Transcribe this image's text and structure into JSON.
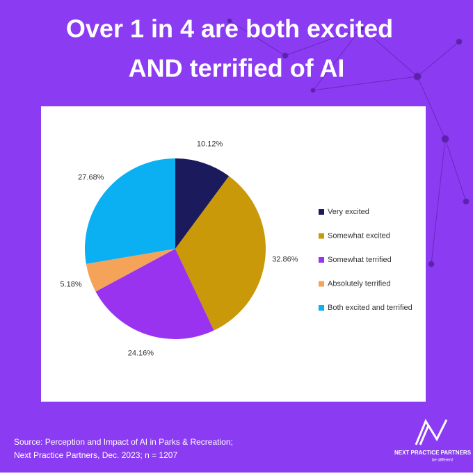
{
  "chart_data": {
    "type": "pie",
    "title": [
      "Over 1 in 4 are both excited",
      "AND terrified of AI"
    ],
    "categories": [
      "Very excited",
      "Somewhat excited",
      "Somewhat terrified",
      "Absolutely terrified",
      "Both excited and terrified"
    ],
    "values": [
      10.12,
      32.86,
      24.16,
      5.18,
      27.68
    ],
    "value_labels": [
      "10.12%",
      "32.86%",
      "24.16%",
      "5.18%",
      "27.68%"
    ],
    "colors": [
      "#1b1a5c",
      "#c9990a",
      "#9933f0",
      "#f6a35a",
      "#0ab0f2"
    ],
    "legend": "right"
  },
  "footer": {
    "source": [
      "Source: Perception and Impact of AI in Parks & Recreation;",
      "Next Practice Partners, Dec. 2023; n = 1207"
    ],
    "logo": {
      "name": "NEXT PRACTICE PARTNERS",
      "tagline": "be different"
    }
  }
}
